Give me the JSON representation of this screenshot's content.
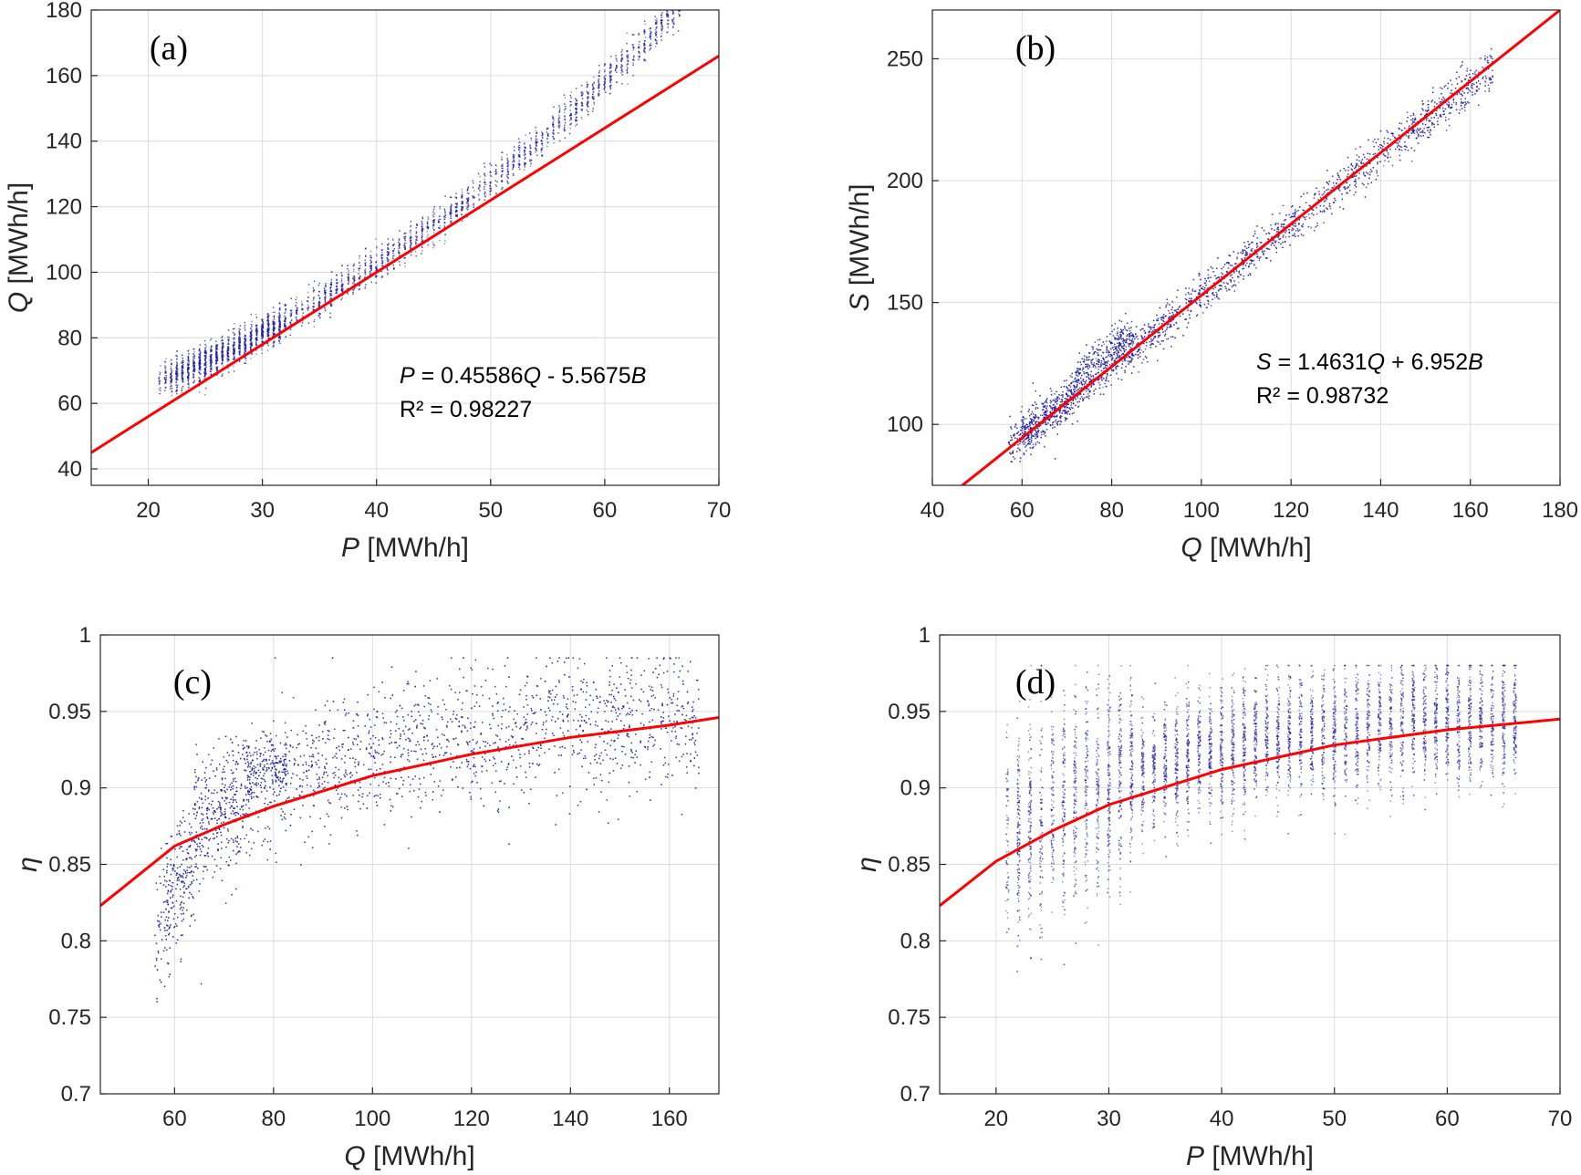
{
  "colors": {
    "scatter": "#1f1fa0",
    "fit": "#ff0000",
    "grid": "#dcdcdc",
    "axis": "#262626"
  },
  "chart_data": [
    {
      "type": "scatter",
      "panel": "(a)",
      "xlabel": {
        "var": "P",
        "unit": " [MWh/h]"
      },
      "ylabel": {
        "var": "Q",
        "unit": " [MWh/h]"
      },
      "xlim": [
        15,
        70
      ],
      "ylim": [
        35,
        180
      ],
      "xticks": [
        20,
        30,
        40,
        50,
        60,
        70
      ],
      "yticks": [
        40,
        60,
        80,
        100,
        120,
        140,
        160,
        180
      ],
      "grid": true,
      "series": [
        {
          "kind": "scatter-cloud",
          "x_range": [
            21,
            66.5
          ],
          "approx_y": "Q ≈ 0.024P² + 0.45P + 47"
        },
        {
          "kind": "fit-line",
          "x": [
            15,
            70
          ],
          "y": [
            45,
            166
          ]
        }
      ],
      "annotation": {
        "line1": [
          "P",
          " = 0.45586",
          "Q",
          " - 5.5675",
          "B"
        ],
        "line2": "R² = 0.98227"
      }
    },
    {
      "type": "scatter",
      "panel": "(b)",
      "xlabel": {
        "var": "Q",
        "unit": " [MWh/h]"
      },
      "ylabel": {
        "var": "S",
        "unit": " [MWh/h]"
      },
      "xlim": [
        40,
        180
      ],
      "ylim": [
        75,
        270
      ],
      "xticks": [
        40,
        60,
        80,
        100,
        120,
        140,
        160,
        180
      ],
      "yticks": [
        100,
        150,
        200,
        250
      ],
      "grid": true,
      "series": [
        {
          "kind": "scatter-cloud",
          "x_range": [
            56,
            167
          ],
          "approx_y": "S ≈ 1.44Q + 9"
        },
        {
          "kind": "fit-line",
          "x": [
            46,
            180
          ],
          "y": [
            74,
            270
          ]
        }
      ],
      "annotation": {
        "line1": [
          "S",
          " = 1.4631",
          "Q",
          " + 6.952",
          "B"
        ],
        "line2": "R² = 0.98732"
      }
    },
    {
      "type": "scatter",
      "panel": "(c)",
      "xlabel": {
        "var": "Q",
        "unit": " [MWh/h]"
      },
      "ylabel": {
        "var": "η",
        "unit": ""
      },
      "xlim": [
        45,
        170
      ],
      "ylim": [
        0.7,
        1
      ],
      "xticks": [
        60,
        80,
        100,
        120,
        140,
        160
      ],
      "yticks": [
        0.7,
        0.75,
        0.8,
        0.85,
        0.9,
        0.95,
        1
      ],
      "ytick_labels": [
        "0.7",
        "0.75",
        "0.8",
        "0.85",
        "0.9",
        "0.95",
        "1"
      ],
      "grid": true,
      "series": [
        {
          "kind": "scatter-cloud",
          "x_range": [
            56,
            167
          ],
          "approx_y": "η ≈ 0.95 - 0.13·exp(-(Q-45)/35)"
        },
        {
          "kind": "fit-curve",
          "x": [
            45,
            60,
            70,
            80,
            100,
            120,
            140,
            160,
            170
          ],
          "y": [
            0.823,
            0.862,
            0.876,
            0.888,
            0.908,
            0.922,
            0.933,
            0.941,
            0.946
          ]
        }
      ]
    },
    {
      "type": "scatter",
      "panel": "(d)",
      "xlabel": {
        "var": "P",
        "unit": " [MWh/h]"
      },
      "ylabel": {
        "var": "η",
        "unit": ""
      },
      "xlim": [
        15,
        70
      ],
      "ylim": [
        0.7,
        1
      ],
      "xticks": [
        20,
        30,
        40,
        50,
        60,
        70
      ],
      "yticks": [
        0.7,
        0.75,
        0.8,
        0.85,
        0.9,
        0.95,
        1
      ],
      "ytick_labels": [
        "0.7",
        "0.75",
        "0.8",
        "0.85",
        "0.9",
        "0.95",
        "1"
      ],
      "grid": true,
      "series": [
        {
          "kind": "scatter-cloud",
          "x_range": [
            21,
            66.5
          ],
          "approx_y": "η ≈ 0.95 - 0.13·exp(-(P-15)/16)"
        },
        {
          "kind": "fit-curve",
          "x": [
            15,
            20,
            25,
            30,
            40,
            50,
            60,
            70
          ],
          "y": [
            0.823,
            0.852,
            0.872,
            0.889,
            0.912,
            0.928,
            0.938,
            0.945
          ]
        }
      ]
    }
  ]
}
